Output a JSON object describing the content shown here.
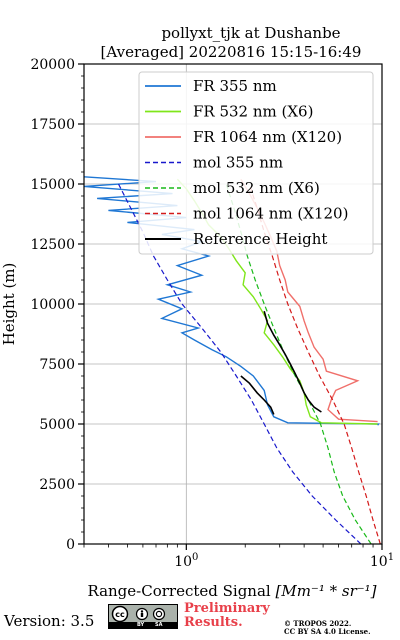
{
  "chart_data": {
    "type": "line",
    "title": "pollyxt_tjk at Dushanbe",
    "subtitle": "[Averaged] 20220816 15:15-16:49",
    "xlabel_text": "Range-Corrected Signal ",
    "xlabel_unit": "[Mm⁻¹ * sr⁻¹]",
    "ylabel": "Height (m)",
    "xscale": "log",
    "xlim": [
      0.3,
      10
    ],
    "ylim": [
      0,
      20000
    ],
    "grid": true,
    "legend_position": "top-right",
    "x_tick_labels": [
      {
        "value": 1,
        "label": "10",
        "exp": "0"
      },
      {
        "value": 10,
        "label": "10",
        "exp": "1"
      }
    ],
    "y_ticks": [
      0,
      2500,
      5000,
      7500,
      10000,
      12500,
      15000,
      17500,
      20000
    ],
    "series": [
      {
        "name": "FR 355 nm",
        "style": "solid",
        "color": "#1f77d4",
        "width": 1.4,
        "points": [
          [
            9.5,
            4950
          ],
          [
            9.6,
            5000
          ],
          [
            3.3,
            5050
          ],
          [
            2.8,
            5300
          ],
          [
            2.6,
            5800
          ],
          [
            2.5,
            6400
          ],
          [
            2.2,
            7000
          ],
          [
            1.9,
            7400
          ],
          [
            1.6,
            7800
          ],
          [
            1.35,
            8100
          ],
          [
            1.1,
            8500
          ],
          [
            0.95,
            8800
          ],
          [
            1.15,
            9000
          ],
          [
            0.75,
            9400
          ],
          [
            0.95,
            9800
          ],
          [
            0.72,
            10200
          ],
          [
            1.05,
            10500
          ],
          [
            0.8,
            10800
          ],
          [
            1.2,
            11200
          ],
          [
            0.9,
            11600
          ],
          [
            1.3,
            12000
          ],
          [
            0.95,
            12300
          ],
          [
            1.2,
            12600
          ],
          [
            0.75,
            12900
          ],
          [
            1.1,
            13100
          ],
          [
            0.5,
            13400
          ],
          [
            1.0,
            13600
          ],
          [
            0.4,
            13900
          ],
          [
            0.9,
            14100
          ],
          [
            0.35,
            14400
          ],
          [
            0.85,
            14600
          ],
          [
            0.3,
            14900
          ],
          [
            0.7,
            15100
          ],
          [
            0.3,
            15300
          ]
        ]
      },
      {
        "name": "FR 532 nm (X6)",
        "style": "solid",
        "color": "#7fe61a",
        "width": 1.4,
        "points": [
          [
            9.5,
            5000
          ],
          [
            4.9,
            5050
          ],
          [
            4.3,
            5300
          ],
          [
            4.1,
            5800
          ],
          [
            4.0,
            6300
          ],
          [
            3.8,
            6800
          ],
          [
            3.4,
            7300
          ],
          [
            3.1,
            7800
          ],
          [
            2.8,
            8300
          ],
          [
            2.5,
            8800
          ],
          [
            2.6,
            9300
          ],
          [
            2.4,
            9800
          ],
          [
            2.2,
            10300
          ],
          [
            1.95,
            10800
          ],
          [
            2.0,
            11300
          ],
          [
            1.8,
            11800
          ],
          [
            1.65,
            12300
          ],
          [
            1.5,
            12800
          ],
          [
            1.3,
            13300
          ],
          [
            1.2,
            13800
          ],
          [
            1.1,
            14300
          ],
          [
            1.0,
            14800
          ],
          [
            0.9,
            15200
          ]
        ]
      },
      {
        "name": "FR 1064 nm (X120)",
        "style": "solid",
        "color": "#f0706b",
        "width": 1.4,
        "points": [
          [
            9.5,
            5100
          ],
          [
            6.0,
            5200
          ],
          [
            5.3,
            5600
          ],
          [
            5.5,
            6000
          ],
          [
            5.8,
            6400
          ],
          [
            7.5,
            6800
          ],
          [
            5.2,
            7200
          ],
          [
            5.0,
            7700
          ],
          [
            4.5,
            8200
          ],
          [
            4.2,
            8800
          ],
          [
            4.0,
            9300
          ],
          [
            3.8,
            9900
          ],
          [
            3.3,
            10500
          ],
          [
            3.2,
            11000
          ],
          [
            3.0,
            11600
          ],
          [
            2.9,
            12200
          ],
          [
            2.7,
            12800
          ],
          [
            2.5,
            13400
          ],
          [
            2.3,
            14000
          ],
          [
            2.1,
            14600
          ],
          [
            1.9,
            15200
          ]
        ]
      },
      {
        "name": "mol 355 nm",
        "style": "dashed",
        "color": "#1818cc",
        "width": 1.2,
        "points": [
          [
            7.8,
            0
          ],
          [
            5.8,
            1000
          ],
          [
            4.4,
            2000
          ],
          [
            3.5,
            3000
          ],
          [
            2.9,
            4000
          ],
          [
            2.5,
            5000
          ],
          [
            2.15,
            6000
          ],
          [
            1.8,
            7000
          ],
          [
            1.5,
            8000
          ],
          [
            1.2,
            9000
          ],
          [
            0.95,
            10000
          ],
          [
            0.8,
            11000
          ],
          [
            0.68,
            12000
          ],
          [
            0.6,
            13000
          ],
          [
            0.52,
            14000
          ],
          [
            0.45,
            15000
          ]
        ]
      },
      {
        "name": "mol 532 nm (X6)",
        "style": "dashed",
        "color": "#19b919",
        "width": 1.2,
        "points": [
          [
            8.8,
            0
          ],
          [
            7.3,
            1000
          ],
          [
            6.3,
            2000
          ],
          [
            5.7,
            3000
          ],
          [
            5.3,
            4000
          ],
          [
            4.85,
            5000
          ],
          [
            4.2,
            6000
          ],
          [
            3.6,
            7000
          ],
          [
            3.15,
            8000
          ],
          [
            2.8,
            9000
          ],
          [
            2.5,
            10000
          ],
          [
            2.25,
            11000
          ],
          [
            2.05,
            12000
          ],
          [
            1.9,
            13000
          ],
          [
            1.75,
            14000
          ],
          [
            1.6,
            15000
          ]
        ]
      },
      {
        "name": "mol 1064 nm (X120)",
        "style": "dashed",
        "color": "#d41a1a",
        "width": 1.2,
        "points": [
          [
            9.8,
            0
          ],
          [
            9.0,
            1000
          ],
          [
            8.3,
            2000
          ],
          [
            7.6,
            3000
          ],
          [
            7.0,
            4000
          ],
          [
            6.4,
            5000
          ],
          [
            5.6,
            6000
          ],
          [
            4.8,
            7000
          ],
          [
            4.2,
            8000
          ],
          [
            3.7,
            9000
          ],
          [
            3.3,
            10000
          ],
          [
            3.0,
            11000
          ],
          [
            2.75,
            12000
          ],
          [
            2.5,
            13000
          ],
          [
            2.3,
            14000
          ],
          [
            2.1,
            15000
          ]
        ]
      },
      {
        "name": "Reference Height",
        "style": "solid",
        "color": "#000000",
        "width": 1.6,
        "points": [
          [
            4.9,
            5500
          ],
          [
            4.5,
            5700
          ],
          [
            4.2,
            6000
          ],
          [
            4.0,
            6300
          ],
          [
            3.8,
            6700
          ],
          [
            3.6,
            7100
          ],
          [
            3.4,
            7500
          ],
          [
            3.2,
            7900
          ],
          [
            3.0,
            8300
          ],
          [
            2.8,
            8700
          ],
          [
            2.6,
            9200
          ],
          [
            2.5,
            9700
          ]
        ]
      }
    ],
    "reference_segments": [
      {
        "points": [
          [
            2.8,
            5400
          ],
          [
            2.7,
            5700
          ],
          [
            2.5,
            6000
          ],
          [
            2.3,
            6300
          ],
          [
            2.1,
            6700
          ],
          [
            1.9,
            7000
          ]
        ]
      },
      {
        "points": [
          [
            4.9,
            5500
          ],
          [
            4.5,
            5700
          ],
          [
            4.2,
            6000
          ],
          [
            4.0,
            6300
          ],
          [
            3.8,
            6700
          ],
          [
            3.6,
            7100
          ],
          [
            3.4,
            7500
          ],
          [
            3.2,
            7900
          ],
          [
            3.0,
            8300
          ],
          [
            2.8,
            8700
          ],
          [
            2.6,
            9200
          ],
          [
            2.5,
            9700
          ]
        ]
      }
    ]
  },
  "footer": {
    "version": "Version: 3.5",
    "cc_by": "BY",
    "cc_sa": "SA",
    "preliminary_line1": "Preliminary",
    "preliminary_line2": "Results.",
    "copyright_line1": "© TROPOS 2022.",
    "copyright_line2": "CC BY SA 4.0 License."
  }
}
